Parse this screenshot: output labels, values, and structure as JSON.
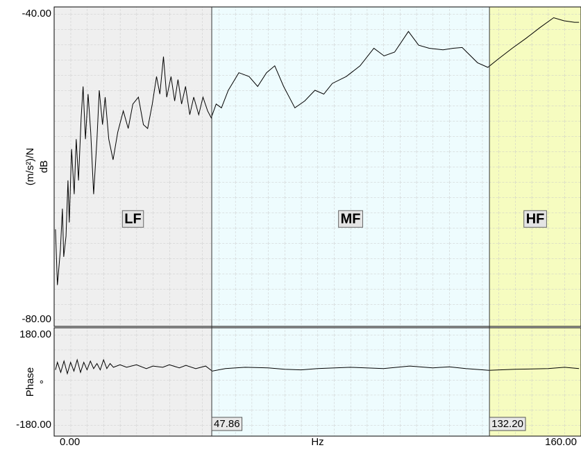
{
  "chart_data": [
    {
      "type": "line",
      "ylabel": "(m/s²)/N",
      "yunit": "dB",
      "xlim": [
        0,
        160
      ],
      "ylim": [
        -80,
        -40
      ],
      "yticks": [
        {
          "value": -80,
          "label": "-80.00"
        },
        {
          "value": -40,
          "label": "-40.00"
        }
      ],
      "bands": [
        {
          "name": "LF",
          "color": "#efefef",
          "range": [
            0,
            47.86
          ]
        },
        {
          "name": "MF",
          "color": "#eefcfe",
          "range": [
            47.86,
            132.2
          ]
        },
        {
          "name": "HF",
          "color": "#f6fcc0",
          "range": [
            132.2,
            160
          ]
        }
      ],
      "series": [
        {
          "color": "#000000",
          "x": [
            0.4,
            1,
            1.9,
            2.5,
            2.9,
            3.6,
            4.2,
            4.6,
            5.3,
            6.1,
            6.7,
            7.4,
            8.2,
            8.8,
            9.5,
            10.3,
            11.1,
            12,
            13,
            13.7,
            14.7,
            15.5,
            16.6,
            17.9,
            19.3,
            21,
            22.5,
            23.9,
            25.6,
            27.1,
            28.4,
            29.8,
            31.1,
            32.1,
            33.2,
            34.2,
            35.5,
            36.6,
            37.6,
            38.7,
            39.9,
            41.2,
            42.4,
            43.9,
            45.2,
            46.6,
            47.7,
            49.2,
            50.8,
            52.9,
            56.1,
            59.2,
            61.8,
            64.5,
            67,
            69.7,
            73.1,
            76.1,
            79.2,
            81.9,
            84.5,
            88.7,
            92.9,
            97.1,
            100.2,
            103.4,
            107.6,
            110.7,
            113.9,
            118.1,
            121.2,
            123.9,
            128.6,
            131.7,
            134.9,
            139.1,
            143.3,
            147.5,
            151.7,
            154.8,
            158,
            159.4
          ],
          "values": [
            -68.2,
            -75.5,
            -70.9,
            -65.5,
            -71.8,
            -69.1,
            -61.8,
            -67.3,
            -57.7,
            -63.6,
            -56.4,
            -61.8,
            -53.6,
            -49.5,
            -56.4,
            -50.5,
            -55.5,
            -63.6,
            -56.4,
            -50,
            -54.5,
            -50.9,
            -56.4,
            -59.1,
            -55.5,
            -52.7,
            -55,
            -51.8,
            -50.9,
            -54.5,
            -55,
            -51.8,
            -48.2,
            -50.5,
            -45.6,
            -50.9,
            -48.2,
            -51.4,
            -48.6,
            -51.8,
            -49.5,
            -53.2,
            -50.9,
            -53.2,
            -50.9,
            -52.7,
            -53.6,
            -51.8,
            -52.3,
            -50,
            -47.7,
            -48.2,
            -49.5,
            -47.7,
            -46.8,
            -49.5,
            -52.3,
            -51.4,
            -50,
            -50.5,
            -49.1,
            -48.2,
            -46.8,
            -44.5,
            -45.5,
            -45,
            -42.3,
            -44.1,
            -44.5,
            -44.7,
            -44.5,
            -44.4,
            -46.4,
            -47,
            -45.9,
            -44.5,
            -43.2,
            -41.8,
            -40.5,
            -40.9,
            -41.1,
            -41.1
          ]
        }
      ]
    },
    {
      "type": "line",
      "ylabel": "Phase",
      "yunit": "°",
      "xlabel": "Hz",
      "xlim": [
        0,
        160
      ],
      "ylim": [
        -180,
        180
      ],
      "xticks": [
        {
          "value": 0,
          "label": "0.00"
        },
        {
          "value": 160,
          "label": "160.00"
        }
      ],
      "yticks": [
        {
          "value": -180,
          "label": "-180.00"
        },
        {
          "value": 180,
          "label": "180.00"
        }
      ],
      "cursors": [
        47.86,
        {
          "value": 132.2,
          "label": "132.20"
        }
      ],
      "series": [
        {
          "color": "#000000",
          "x": [
            0.4,
            1,
            2,
            3,
            4,
            5,
            6,
            7,
            8,
            9,
            10,
            11,
            12,
            13,
            14,
            15,
            16,
            17,
            18,
            20,
            22,
            25,
            28,
            30,
            33,
            35,
            38,
            40,
            43,
            46,
            48,
            52,
            58,
            65,
            70,
            75,
            80,
            90,
            100,
            108,
            115,
            120,
            125,
            132,
            140,
            150,
            155,
            159.4
          ],
          "values": [
            40,
            70,
            30,
            75,
            25,
            70,
            35,
            80,
            30,
            70,
            40,
            75,
            45,
            65,
            40,
            80,
            45,
            65,
            50,
            60,
            50,
            60,
            45,
            55,
            50,
            60,
            48,
            58,
            45,
            55,
            35,
            45,
            50,
            48,
            42,
            40,
            45,
            50,
            45,
            55,
            48,
            52,
            45,
            38,
            42,
            45,
            50,
            45
          ]
        }
      ]
    }
  ]
}
